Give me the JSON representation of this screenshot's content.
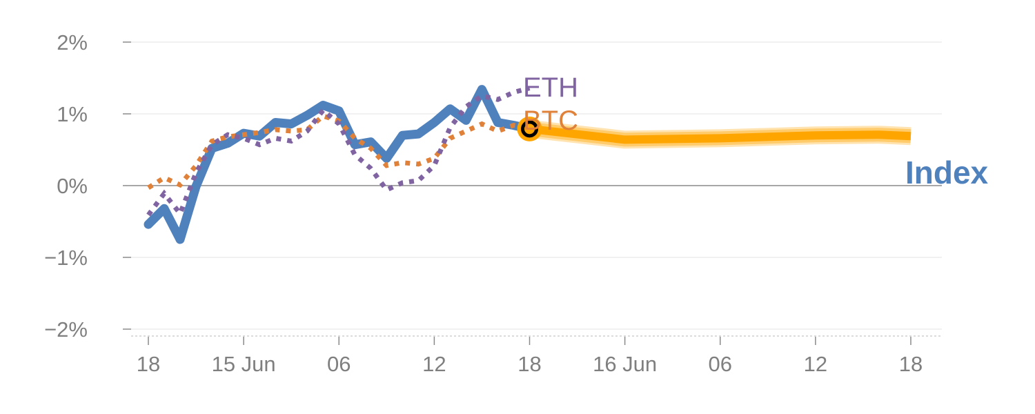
{
  "chart_data": {
    "type": "line",
    "title": "",
    "xlabel": "",
    "ylabel": "",
    "ylim": [
      -2,
      2
    ],
    "y_ticks": [
      2,
      1,
      0,
      -1,
      -2
    ],
    "y_tick_labels": [
      "2%",
      "1%",
      "0%",
      "−1%",
      "−2%"
    ],
    "x_unit": "hours from first point",
    "x_ticks": [
      0,
      6,
      12,
      18,
      24,
      30,
      36,
      42,
      48
    ],
    "x_tick_labels": [
      "18",
      "15 Jun",
      "06",
      "12",
      "18",
      "16 Jun",
      "06",
      "12",
      "18"
    ],
    "grid": true,
    "series": [
      {
        "name": "ETH",
        "style": "dotted",
        "color": "#8064a2",
        "x": [
          0,
          1,
          2,
          3,
          4,
          5,
          6,
          7,
          8,
          9,
          10,
          11,
          12,
          13,
          14,
          15,
          16,
          17,
          18,
          19,
          20,
          21,
          22,
          23,
          24
        ],
        "values": [
          -0.41,
          -0.11,
          -0.39,
          0.18,
          0.57,
          0.71,
          0.66,
          0.57,
          0.66,
          0.62,
          0.76,
          1.05,
          0.86,
          0.43,
          0.24,
          -0.06,
          0.04,
          0.07,
          0.28,
          0.81,
          1.1,
          1.25,
          1.2,
          1.3,
          1.36
        ]
      },
      {
        "name": "BTC",
        "style": "dotted",
        "color": "#e0813a",
        "x": [
          0,
          1,
          2,
          3,
          4,
          5,
          6,
          7,
          8,
          9,
          10,
          11,
          12,
          13,
          14,
          15,
          16,
          17,
          18,
          19,
          20,
          21,
          22,
          23,
          24
        ],
        "values": [
          -0.03,
          0.11,
          0.01,
          0.28,
          0.62,
          0.68,
          0.71,
          0.74,
          0.78,
          0.76,
          0.78,
          0.97,
          0.9,
          0.66,
          0.52,
          0.28,
          0.32,
          0.3,
          0.38,
          0.66,
          0.76,
          0.86,
          0.76,
          0.84,
          0.81
        ]
      },
      {
        "name": "Index",
        "style": "solid",
        "color": "#4f81bd",
        "x": [
          0,
          1,
          2,
          3,
          4,
          5,
          6,
          7,
          8,
          9,
          10,
          11,
          12,
          13,
          14,
          15,
          16,
          17,
          18,
          19,
          20,
          21,
          22,
          23,
          24
        ],
        "values": [
          -0.54,
          -0.32,
          -0.75,
          -0.01,
          0.52,
          0.59,
          0.73,
          0.69,
          0.88,
          0.86,
          0.98,
          1.12,
          1.04,
          0.57,
          0.61,
          0.38,
          0.7,
          0.72,
          0.88,
          1.07,
          0.91,
          1.34,
          0.88,
          0.84,
          0.79
        ]
      },
      {
        "name": "Index forecast",
        "style": "band",
        "color": "#ffa500",
        "x": [
          24,
          30,
          36,
          42,
          46,
          48
        ],
        "values": [
          0.79,
          0.64,
          0.66,
          0.7,
          0.71,
          0.69
        ]
      }
    ],
    "labels": [
      {
        "text": "ETH",
        "color": "#8064a2"
      },
      {
        "text": "BTC",
        "color": "#e0813a"
      },
      {
        "text": "Index",
        "color": "#4f81bd"
      }
    ]
  }
}
